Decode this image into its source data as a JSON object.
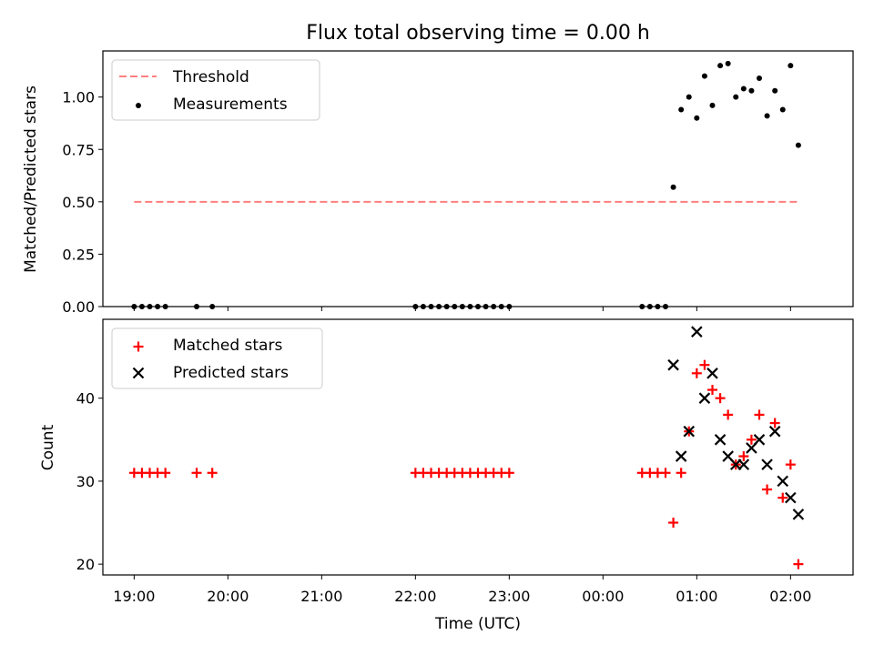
{
  "figure": {
    "title": "Flux total observing time = 0.00 h",
    "xlabel": "Time (UTC)"
  },
  "colors": {
    "threshold": "#ff7f7f",
    "measurements": "#000000",
    "matched": "#ff0000",
    "predicted": "#000000"
  },
  "chart_data": [
    {
      "type": "scatter",
      "ylabel": "Matched/Predicted stars",
      "ylim": [
        0.0,
        1.22
      ],
      "yticks": [
        0.0,
        0.25,
        0.5,
        0.75,
        1.0
      ],
      "ytick_labels": [
        "0.00",
        "0.25",
        "0.50",
        "0.75",
        "1.00"
      ],
      "xticks_shown": false,
      "legend": {
        "position": "upper-left",
        "entries": [
          "Threshold",
          "Measurements"
        ]
      },
      "threshold": {
        "name": "Threshold",
        "value": 0.5,
        "x_start": "19:00",
        "x_end": "02:05",
        "style": "dashed"
      },
      "series": [
        {
          "name": "Measurements",
          "marker": "dot",
          "x": [
            "19:00",
            "19:05",
            "19:10",
            "19:15",
            "19:20",
            "19:40",
            "19:50",
            "22:00",
            "22:05",
            "22:10",
            "22:15",
            "22:20",
            "22:25",
            "22:30",
            "22:35",
            "22:40",
            "22:45",
            "22:50",
            "22:55",
            "23:00",
            "00:25",
            "00:30",
            "00:35",
            "00:40",
            "00:45",
            "00:50",
            "00:55",
            "01:00",
            "01:05",
            "01:10",
            "01:15",
            "01:20",
            "01:25",
            "01:30",
            "01:35",
            "01:40",
            "01:45",
            "01:50",
            "01:55",
            "02:00",
            "02:05"
          ],
          "values": [
            0,
            0,
            0,
            0,
            0,
            0,
            0,
            0,
            0,
            0,
            0,
            0,
            0,
            0,
            0,
            0,
            0,
            0,
            0,
            0,
            0,
            0,
            0,
            0,
            0.57,
            0.94,
            1.0,
            0.9,
            1.1,
            0.96,
            1.15,
            1.16,
            1.0,
            1.04,
            1.03,
            1.09,
            0.91,
            1.03,
            0.94,
            1.15,
            0.77
          ]
        }
      ]
    },
    {
      "type": "scatter",
      "ylabel": "Count",
      "ylim": [
        18.7,
        49.5
      ],
      "yticks": [
        20,
        30,
        40
      ],
      "ytick_labels": [
        "20",
        "30",
        "40"
      ],
      "xticks": [
        "19:00",
        "20:00",
        "21:00",
        "22:00",
        "23:00",
        "00:00",
        "01:00",
        "02:00"
      ],
      "xlim": [
        "18:40",
        "02:40"
      ],
      "legend": {
        "position": "upper-left",
        "entries": [
          "Matched stars",
          "Predicted stars"
        ]
      },
      "series": [
        {
          "name": "Matched stars",
          "marker": "plus",
          "x": [
            "19:00",
            "19:05",
            "19:10",
            "19:15",
            "19:20",
            "19:40",
            "19:50",
            "22:00",
            "22:05",
            "22:10",
            "22:15",
            "22:20",
            "22:25",
            "22:30",
            "22:35",
            "22:40",
            "22:45",
            "22:50",
            "22:55",
            "23:00",
            "00:25",
            "00:30",
            "00:35",
            "00:40",
            "00:45",
            "00:50",
            "00:55",
            "01:00",
            "01:05",
            "01:10",
            "01:15",
            "01:20",
            "01:25",
            "01:30",
            "01:35",
            "01:40",
            "01:45",
            "01:50",
            "01:55",
            "02:00",
            "02:05"
          ],
          "values": [
            31,
            31,
            31,
            31,
            31,
            31,
            31,
            31,
            31,
            31,
            31,
            31,
            31,
            31,
            31,
            31,
            31,
            31,
            31,
            31,
            31,
            31,
            31,
            31,
            25,
            31,
            36,
            43,
            44,
            41,
            40,
            38,
            32,
            33,
            35,
            38,
            29,
            37,
            28,
            32,
            20
          ]
        },
        {
          "name": "Predicted stars",
          "marker": "x",
          "x": [
            "00:45",
            "00:50",
            "00:55",
            "01:00",
            "01:05",
            "01:10",
            "01:15",
            "01:20",
            "01:25",
            "01:30",
            "01:35",
            "01:40",
            "01:45",
            "01:50",
            "01:55",
            "02:00",
            "02:05"
          ],
          "values": [
            44,
            33,
            36,
            48,
            40,
            43,
            35,
            33,
            32,
            32,
            34,
            35,
            32,
            36,
            30,
            28,
            26
          ]
        }
      ]
    }
  ]
}
